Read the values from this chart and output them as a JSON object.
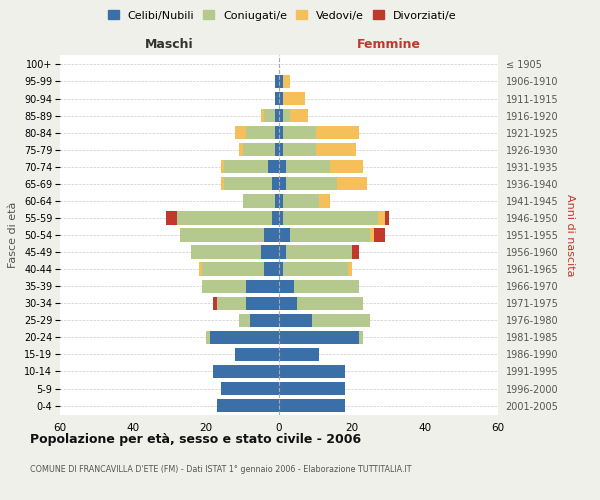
{
  "age_groups": [
    "0-4",
    "5-9",
    "10-14",
    "15-19",
    "20-24",
    "25-29",
    "30-34",
    "35-39",
    "40-44",
    "45-49",
    "50-54",
    "55-59",
    "60-64",
    "65-69",
    "70-74",
    "75-79",
    "80-84",
    "85-89",
    "90-94",
    "95-99",
    "100+"
  ],
  "birth_years": [
    "2001-2005",
    "1996-2000",
    "1991-1995",
    "1986-1990",
    "1981-1985",
    "1976-1980",
    "1971-1975",
    "1966-1970",
    "1961-1965",
    "1956-1960",
    "1951-1955",
    "1946-1950",
    "1941-1945",
    "1936-1940",
    "1931-1935",
    "1926-1930",
    "1921-1925",
    "1916-1920",
    "1911-1915",
    "1906-1910",
    "≤ 1905"
  ],
  "colors": {
    "celibi": "#3a6fa8",
    "coniugati": "#b5c98e",
    "vedovi": "#f5c05a",
    "divorziati": "#c0392b"
  },
  "maschi": {
    "celibi": [
      17,
      16,
      18,
      12,
      19,
      8,
      9,
      9,
      4,
      5,
      4,
      2,
      1,
      2,
      3,
      1,
      1,
      1,
      1,
      1,
      0
    ],
    "coniugati": [
      0,
      0,
      0,
      0,
      1,
      3,
      8,
      12,
      17,
      19,
      23,
      26,
      9,
      13,
      12,
      9,
      8,
      3,
      0,
      0,
      0
    ],
    "vedovi": [
      0,
      0,
      0,
      0,
      0,
      0,
      0,
      0,
      1,
      0,
      0,
      0,
      0,
      1,
      1,
      1,
      3,
      1,
      0,
      0,
      0
    ],
    "divorziati": [
      0,
      0,
      0,
      0,
      0,
      0,
      1,
      0,
      0,
      0,
      0,
      3,
      0,
      0,
      0,
      0,
      0,
      0,
      0,
      0,
      0
    ]
  },
  "femmine": {
    "nubili": [
      18,
      18,
      18,
      11,
      22,
      9,
      5,
      4,
      1,
      2,
      3,
      1,
      1,
      2,
      2,
      1,
      1,
      1,
      1,
      1,
      0
    ],
    "coniugate": [
      0,
      0,
      0,
      0,
      1,
      16,
      18,
      18,
      18,
      18,
      22,
      26,
      10,
      14,
      12,
      9,
      9,
      2,
      0,
      0,
      0
    ],
    "vedove": [
      0,
      0,
      0,
      0,
      0,
      0,
      0,
      0,
      1,
      0,
      1,
      2,
      3,
      8,
      9,
      11,
      12,
      5,
      6,
      2,
      0
    ],
    "divorziate": [
      0,
      0,
      0,
      0,
      0,
      0,
      0,
      0,
      0,
      2,
      3,
      1,
      0,
      0,
      0,
      0,
      0,
      0,
      0,
      0,
      0
    ]
  },
  "title": "Popolazione per età, sesso e stato civile - 2006",
  "subtitle": "COMUNE DI FRANCAVILLA D'ETE (FM) - Dati ISTAT 1° gennaio 2006 - Elaborazione TUTTITALIA.IT",
  "xlabel_left": "Maschi",
  "xlabel_right": "Femmine",
  "ylabel_left": "Fasce di età",
  "ylabel_right": "Anni di nascita",
  "xlim": 60,
  "legend_labels": [
    "Celibi/Nubili",
    "Coniugati/e",
    "Vedovi/e",
    "Divorziati/e"
  ],
  "bg_color": "#f0f0eb",
  "plot_bg": "#ffffff"
}
